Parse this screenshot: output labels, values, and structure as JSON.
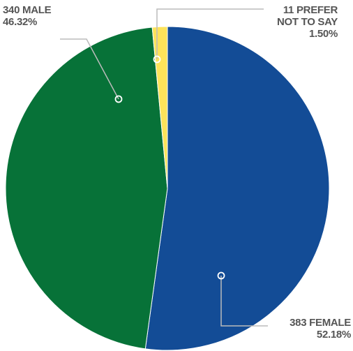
{
  "chart_data": {
    "type": "pie",
    "categories": [
      "FEMALE",
      "MALE",
      "PREFER NOT TO SAY"
    ],
    "counts": [
      383,
      340,
      11
    ],
    "values": [
      52.18,
      46.32,
      1.5
    ],
    "value_labels": [
      "52.18%",
      "46.32%",
      "1.50%"
    ],
    "colors": [
      "#134c96",
      "#077238",
      "#fde35a"
    ]
  }
}
